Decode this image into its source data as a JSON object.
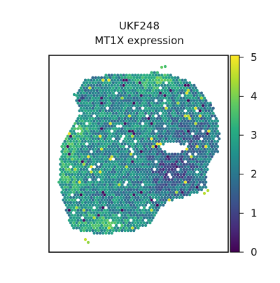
{
  "chart_data": {
    "type": "scatter",
    "title_line1": "UKF248",
    "title_line2": "MT1X expression",
    "xlabel": "",
    "ylabel": "",
    "axes_ticks_shown": false,
    "legend": "none",
    "colormap": "viridis",
    "colorbar": {
      "ticks": [
        "0",
        "1",
        "2",
        "3",
        "4",
        "5"
      ],
      "range": [
        0,
        5.05
      ]
    },
    "mean_expression_estimate": 2.4,
    "spot_count_estimate": 2500,
    "colors": {
      "axes_frame": "#000000",
      "background": "#ffffff",
      "low": "#440154",
      "mid": "#21918c",
      "high": "#fde725"
    }
  }
}
